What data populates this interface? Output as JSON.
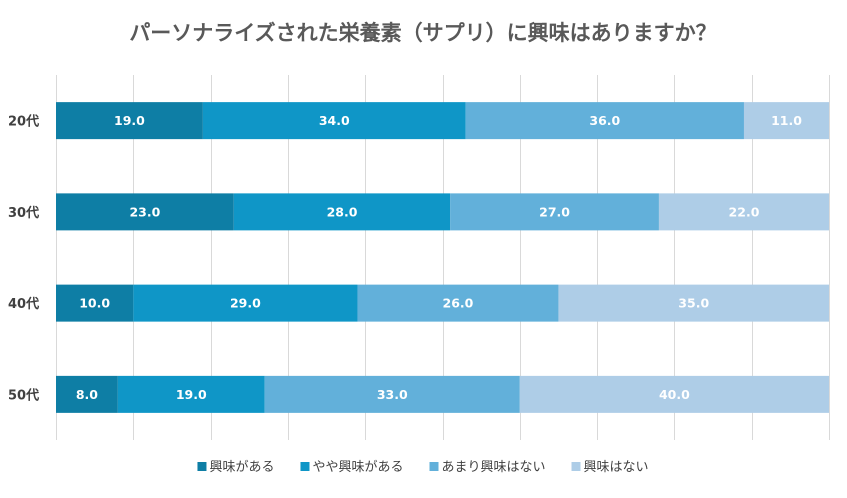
{
  "chart_data": {
    "type": "bar",
    "orientation": "horizontal",
    "stacked": true,
    "title": "パーソナライズされた栄養素（サプリ）に興味はありますか？",
    "categories": [
      "20代",
      "30代",
      "40代",
      "50代"
    ],
    "series": [
      {
        "name": "興味がある",
        "values": [
          19.0,
          23.0,
          10.0,
          8.0
        ],
        "color": "#0e7ea5"
      },
      {
        "name": "やや興味がある",
        "values": [
          34.0,
          28.0,
          29.0,
          19.0
        ],
        "color": "#0f96c7"
      },
      {
        "name": "あまり興味はない",
        "values": [
          36.0,
          27.0,
          26.0,
          33.0
        ],
        "color": "#62b0da"
      },
      {
        "name": "興味はない",
        "values": [
          11.0,
          22.0,
          35.0,
          40.0
        ],
        "color": "#aecde7"
      }
    ],
    "xlim": [
      0,
      100
    ],
    "grid": true,
    "legend": "bottom",
    "data_labels": true
  }
}
